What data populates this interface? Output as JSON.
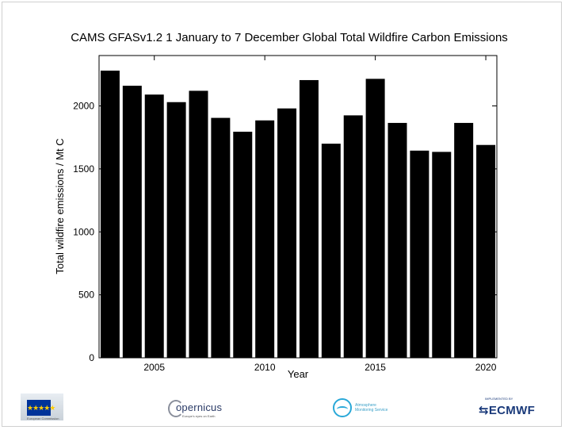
{
  "chart_data": {
    "type": "bar",
    "title": "CAMS GFASv1.2 1 January to 7 December Global Total Wildfire Carbon Emissions",
    "xlabel": "Year",
    "ylabel": "Total wildfire emissions / Mt C",
    "categories": [
      2003,
      2004,
      2005,
      2006,
      2007,
      2008,
      2009,
      2010,
      2011,
      2012,
      2013,
      2014,
      2015,
      2016,
      2017,
      2018,
      2019,
      2020
    ],
    "values": [
      2280,
      2160,
      2090,
      2030,
      2120,
      1905,
      1795,
      1885,
      1980,
      2205,
      1700,
      1925,
      2215,
      1865,
      1645,
      1635,
      1865,
      1690
    ],
    "xticks": [
      2005,
      2010,
      2015,
      2020
    ],
    "yticks": [
      0,
      500,
      1000,
      1500,
      2000
    ],
    "xlim": [
      2002.5,
      2020.5
    ],
    "ylim": [
      0,
      2400
    ],
    "bar_color": "#000000",
    "grid": false,
    "legend": "none"
  },
  "logos": {
    "eu": {
      "name": "European Commission",
      "text": "European Commission",
      "flag_color": "#003399",
      "star_color": "#ffcc00"
    },
    "copernicus": {
      "name": "opernicus",
      "tagline": "Europe's eyes on Earth",
      "color": "#2a3a66"
    },
    "cams": {
      "line1": "Atmosphere",
      "line2": "Monitoring Service",
      "color": "#29a8d8"
    },
    "ecmwf": {
      "small": "IMPLEMENTED BY",
      "name": "ECMWF",
      "color": "#1a3a7a"
    }
  }
}
